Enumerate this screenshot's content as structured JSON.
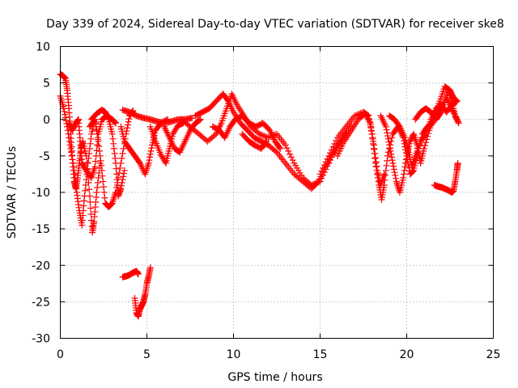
{
  "chart_data": {
    "type": "scatter",
    "title": "Day 339 of 2024, Sidereal Day-to-day VTEC variation (SDTVAR) for receiver ske8",
    "xlabel": "GPS time / hours",
    "ylabel": "SDTVAR / TECUs",
    "xlim": [
      0,
      25
    ],
    "ylim": [
      -30,
      10
    ],
    "xticks": [
      "0",
      "5",
      "10",
      "15",
      "20",
      "25"
    ],
    "yticks": [
      "10",
      "5",
      "0",
      "-5",
      "-10",
      "-15",
      "-20",
      "-25",
      "-30"
    ],
    "grid": true,
    "marker": "+",
    "color": "#ff0000",
    "series": [
      {
        "name": "track-a",
        "points": [
          [
            0.0,
            6.2
          ],
          [
            0.15,
            6.0
          ],
          [
            0.3,
            5.6
          ],
          [
            0.4,
            4.0
          ],
          [
            0.5,
            1.5
          ],
          [
            0.6,
            -2.0
          ],
          [
            0.7,
            -5.5
          ],
          [
            0.8,
            -8.5
          ],
          [
            0.9,
            -9.5
          ],
          [
            1.0,
            -8.0
          ],
          [
            1.1,
            -6.0
          ],
          [
            1.2,
            -4.0
          ],
          [
            1.3,
            -3.0
          ],
          [
            1.5,
            -5.0
          ],
          [
            1.7,
            -10.5
          ],
          [
            1.85,
            -15.5
          ],
          [
            1.95,
            -14.0
          ],
          [
            2.1,
            -10.0
          ],
          [
            2.3,
            -6.0
          ]
        ]
      },
      {
        "name": "track-b",
        "points": [
          [
            0.0,
            3.2
          ],
          [
            0.2,
            1.5
          ],
          [
            0.4,
            -1.0
          ],
          [
            0.6,
            -4.0
          ],
          [
            0.8,
            -7.0
          ],
          [
            0.95,
            -10.0
          ],
          [
            1.1,
            -12.5
          ],
          [
            1.25,
            -14.5
          ],
          [
            1.4,
            -10.5
          ],
          [
            1.6,
            -6.0
          ],
          [
            1.8,
            -2.0
          ],
          [
            2.0,
            0.0
          ]
        ]
      },
      {
        "name": "track-c",
        "points": [
          [
            0.5,
            -0.5
          ],
          [
            0.7,
            -1.5
          ],
          [
            0.9,
            -0.5
          ],
          [
            1.05,
            0.0
          ],
          [
            1.15,
            -3.0
          ],
          [
            1.25,
            -6.0
          ],
          [
            1.5,
            -7.0
          ],
          [
            1.8,
            -8.0
          ],
          [
            2.0,
            -6.5
          ],
          [
            2.2,
            -2.0
          ],
          [
            2.4,
            0.0
          ],
          [
            2.7,
            0.5
          ],
          [
            3.0,
            0.0
          ],
          [
            3.2,
            -0.5
          ]
        ]
      },
      {
        "name": "track-d",
        "points": [
          [
            1.7,
            -1.0
          ],
          [
            2.0,
            0.0
          ],
          [
            2.2,
            -3.0
          ],
          [
            2.4,
            -7.0
          ],
          [
            2.6,
            -11.5
          ],
          [
            2.8,
            -12.0
          ],
          [
            3.0,
            -11.5
          ],
          [
            3.2,
            -10.0
          ],
          [
            3.5,
            -6.0
          ],
          [
            3.8,
            -2.0
          ],
          [
            4.0,
            0.5
          ],
          [
            4.2,
            1.2
          ]
        ]
      },
      {
        "name": "track-e",
        "points": [
          [
            1.8,
            0.0
          ],
          [
            2.1,
            0.8
          ],
          [
            2.4,
            1.3
          ],
          [
            2.6,
            1.0
          ],
          [
            2.8,
            0.0
          ],
          [
            3.0,
            -2.0
          ],
          [
            3.2,
            -6.0
          ],
          [
            3.35,
            -10.5
          ],
          [
            3.5,
            -9.5
          ],
          [
            3.7,
            -7.0
          ]
        ]
      },
      {
        "name": "track-f",
        "points": [
          [
            3.5,
            -1.0
          ],
          [
            3.7,
            -3.0
          ],
          [
            4.0,
            -4.0
          ],
          [
            4.3,
            -5.0
          ],
          [
            4.6,
            -6.0
          ],
          [
            4.9,
            -7.5
          ],
          [
            5.1,
            -6.0
          ],
          [
            5.3,
            -3.5
          ],
          [
            5.5,
            -1.5
          ],
          [
            5.8,
            -0.5
          ],
          [
            6.2,
            0.0
          ]
        ]
      },
      {
        "name": "track-g",
        "points": [
          [
            3.6,
            1.3
          ],
          [
            4.0,
            1.0
          ],
          [
            4.4,
            0.5
          ],
          [
            4.8,
            0.2
          ],
          [
            5.2,
            0.0
          ],
          [
            5.6,
            -0.3
          ],
          [
            6.0,
            -0.5
          ],
          [
            6.4,
            -0.3
          ],
          [
            6.8,
            0.0
          ],
          [
            7.2,
            0.0
          ],
          [
            7.6,
            0.2
          ]
        ]
      },
      {
        "name": "track-h",
        "points": [
          [
            5.2,
            -1.0
          ],
          [
            5.5,
            -3.0
          ],
          [
            5.8,
            -4.8
          ],
          [
            6.1,
            -6.0
          ],
          [
            6.3,
            -4.0
          ],
          [
            6.5,
            -2.0
          ],
          [
            6.8,
            -0.8
          ],
          [
            7.1,
            -0.5
          ]
        ]
      },
      {
        "name": "track-i",
        "points": [
          [
            6.0,
            -1.0
          ],
          [
            6.3,
            -2.5
          ],
          [
            6.6,
            -4.0
          ],
          [
            6.9,
            -4.5
          ],
          [
            7.2,
            -3.0
          ],
          [
            7.5,
            -1.5
          ],
          [
            7.8,
            -0.5
          ],
          [
            8.1,
            0.0
          ]
        ]
      },
      {
        "name": "track-j",
        "points": [
          [
            7.0,
            0.0
          ],
          [
            7.5,
            -1.0
          ],
          [
            8.0,
            -2.0
          ],
          [
            8.5,
            -3.0
          ],
          [
            9.0,
            -2.0
          ],
          [
            9.3,
            -0.5
          ],
          [
            9.6,
            1.5
          ],
          [
            9.9,
            3.5
          ],
          [
            10.2,
            2.0
          ],
          [
            10.6,
            0.5
          ],
          [
            11.0,
            -1.0
          ],
          [
            11.5,
            -2.0
          ],
          [
            12.0,
            -2.5
          ],
          [
            12.5,
            -2.0
          ],
          [
            13.0,
            -3.5
          ],
          [
            13.5,
            -6.0
          ],
          [
            14.0,
            -8.0
          ],
          [
            14.5,
            -9.0
          ],
          [
            15.0,
            -8.5
          ],
          [
            15.5,
            -6.0
          ],
          [
            16.0,
            -3.5
          ],
          [
            16.5,
            -2.0
          ]
        ]
      },
      {
        "name": "track-k",
        "points": [
          [
            7.8,
            0.5
          ],
          [
            8.2,
            1.0
          ],
          [
            8.6,
            1.5
          ],
          [
            9.0,
            2.5
          ],
          [
            9.4,
            3.5
          ],
          [
            9.7,
            2.5
          ],
          [
            10.0,
            1.0
          ],
          [
            10.4,
            -0.5
          ],
          [
            10.8,
            -1.5
          ],
          [
            11.2,
            -2.5
          ],
          [
            11.6,
            -3.0
          ],
          [
            12.0,
            -3.5
          ],
          [
            12.5,
            -4.5
          ],
          [
            13.0,
            -6.0
          ],
          [
            13.5,
            -7.5
          ],
          [
            14.0,
            -8.5
          ],
          [
            14.5,
            -9.5
          ],
          [
            14.9,
            -8.5
          ],
          [
            15.3,
            -6.5
          ],
          [
            15.8,
            -4.5
          ],
          [
            16.3,
            -2.5
          ],
          [
            16.8,
            -1.0
          ]
        ]
      },
      {
        "name": "track-l",
        "points": [
          [
            8.8,
            -1.0
          ],
          [
            9.2,
            -1.5
          ],
          [
            9.5,
            -2.5
          ],
          [
            9.8,
            -1.0
          ],
          [
            10.1,
            0.0
          ],
          [
            10.5,
            0.5
          ],
          [
            10.9,
            -0.5
          ],
          [
            11.3,
            -1.0
          ],
          [
            11.7,
            -0.5
          ],
          [
            12.1,
            -1.5
          ],
          [
            12.4,
            -3.0
          ],
          [
            12.7,
            -4.0
          ]
        ]
      },
      {
        "name": "track-m",
        "points": [
          [
            10.5,
            -2.0
          ],
          [
            10.9,
            -3.0
          ],
          [
            11.2,
            -3.5
          ],
          [
            11.6,
            -4.0
          ],
          [
            11.9,
            -3.0
          ]
        ]
      },
      {
        "name": "track-n",
        "points": [
          [
            15.0,
            -7.5
          ],
          [
            15.5,
            -5.0
          ],
          [
            16.0,
            -2.5
          ],
          [
            16.5,
            -1.0
          ],
          [
            17.0,
            0.5
          ],
          [
            17.5,
            1.0
          ],
          [
            17.8,
            0.5
          ],
          [
            18.0,
            -2.0
          ],
          [
            18.2,
            -6.0
          ],
          [
            18.4,
            -9.0
          ],
          [
            18.55,
            -11.0
          ],
          [
            18.7,
            -9.0
          ],
          [
            18.9,
            -5.0
          ],
          [
            19.2,
            -2.0
          ],
          [
            19.5,
            -1.0
          ],
          [
            19.8,
            -2.5
          ],
          [
            20.0,
            -5.0
          ],
          [
            20.2,
            -7.5
          ],
          [
            20.4,
            -7.0
          ],
          [
            20.6,
            -5.0
          ],
          [
            20.9,
            -2.0
          ],
          [
            21.2,
            -1.0
          ],
          [
            21.5,
            -0.5
          ],
          [
            21.8,
            1.0
          ],
          [
            22.1,
            2.0
          ],
          [
            22.4,
            4.0
          ],
          [
            22.6,
            2.5
          ],
          [
            22.8,
            0.5
          ],
          [
            23.0,
            -0.5
          ]
        ]
      },
      {
        "name": "track-o",
        "points": [
          [
            16.0,
            -5.0
          ],
          [
            16.4,
            -3.0
          ],
          [
            16.8,
            -1.5
          ],
          [
            17.2,
            0.0
          ],
          [
            17.6,
            0.8
          ],
          [
            17.9,
            -0.5
          ],
          [
            18.1,
            -3.5
          ],
          [
            18.3,
            -7.0
          ],
          [
            18.5,
            -9.0
          ],
          [
            18.7,
            -7.5
          ]
        ]
      },
      {
        "name": "track-p",
        "points": [
          [
            18.5,
            0.5
          ],
          [
            18.8,
            -1.0
          ],
          [
            19.0,
            -3.5
          ],
          [
            19.2,
            -6.0
          ],
          [
            19.4,
            -8.5
          ],
          [
            19.6,
            -10.0
          ],
          [
            19.8,
            -8.0
          ],
          [
            20.0,
            -5.0
          ],
          [
            20.2,
            -3.0
          ],
          [
            20.4,
            -2.0
          ],
          [
            20.6,
            -3.5
          ],
          [
            20.8,
            -6.0
          ],
          [
            21.0,
            -4.0
          ],
          [
            21.3,
            -1.5
          ],
          [
            21.6,
            0.5
          ],
          [
            21.9,
            2.5
          ],
          [
            22.2,
            4.5
          ],
          [
            22.5,
            4.0
          ],
          [
            22.7,
            3.0
          ],
          [
            22.9,
            2.5
          ]
        ]
      },
      {
        "name": "track-q",
        "points": [
          [
            19.0,
            0.5
          ],
          [
            19.3,
            0.0
          ],
          [
            19.6,
            -1.0
          ],
          [
            19.9,
            -2.5
          ],
          [
            20.1,
            -4.5
          ],
          [
            20.3,
            -6.5
          ],
          [
            20.5,
            -5.0
          ],
          [
            20.8,
            -3.0
          ],
          [
            21.1,
            -2.0
          ],
          [
            21.4,
            0.0
          ],
          [
            21.7,
            1.5
          ],
          [
            22.0,
            2.0
          ],
          [
            22.3,
            1.0
          ],
          [
            22.6,
            2.0
          ],
          [
            22.9,
            2.5
          ]
        ]
      },
      {
        "name": "track-r",
        "points": [
          [
            20.5,
            0.0
          ],
          [
            20.8,
            1.0
          ],
          [
            21.1,
            1.5
          ],
          [
            21.4,
            1.0
          ],
          [
            21.7,
            0.0
          ],
          [
            22.0,
            1.0
          ],
          [
            22.3,
            3.0
          ],
          [
            22.6,
            1.5
          ],
          [
            22.9,
            0.0
          ]
        ]
      },
      {
        "name": "track-s",
        "points": [
          [
            21.6,
            -9.0
          ],
          [
            21.8,
            -9.2
          ],
          [
            22.0,
            -9.3
          ],
          [
            22.2,
            -9.5
          ],
          [
            22.4,
            -9.7
          ],
          [
            22.6,
            -10.0
          ],
          [
            22.7,
            -9.8
          ],
          [
            22.8,
            -8.5
          ],
          [
            22.9,
            -7.0
          ],
          [
            22.95,
            -6.0
          ]
        ]
      },
      {
        "name": "track-t",
        "points": [
          [
            3.6,
            -21.6
          ],
          [
            3.8,
            -21.5
          ],
          [
            4.0,
            -21.3
          ],
          [
            4.2,
            -21.0
          ],
          [
            4.4,
            -20.8
          ],
          [
            4.5,
            -21.2
          ]
        ]
      },
      {
        "name": "track-u",
        "points": [
          [
            4.3,
            -24.5
          ],
          [
            4.4,
            -26.5
          ],
          [
            4.5,
            -27.0
          ],
          [
            4.6,
            -26.0
          ],
          [
            4.7,
            -25.5
          ],
          [
            4.8,
            -25.0
          ],
          [
            4.9,
            -24.0
          ],
          [
            5.0,
            -22.5
          ],
          [
            5.1,
            -21.5
          ],
          [
            5.2,
            -20.3
          ]
        ]
      }
    ]
  }
}
